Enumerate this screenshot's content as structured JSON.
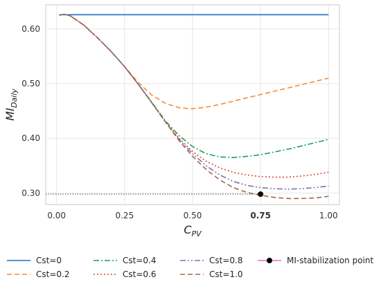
{
  "chart_data": {
    "type": "line",
    "xlabel": {
      "main": "C",
      "sub": "PV"
    },
    "ylabel": {
      "main": "MI",
      "sub": "Daily"
    },
    "xlim": [
      -0.04,
      1.04
    ],
    "ylim": [
      0.279,
      0.644
    ],
    "xticks": [
      {
        "value": 0.0,
        "label": "0.00",
        "bold": false
      },
      {
        "value": 0.25,
        "label": "0.25",
        "bold": false
      },
      {
        "value": 0.5,
        "label": "0.50",
        "bold": false
      },
      {
        "value": 0.75,
        "label": "0.75",
        "bold": true
      },
      {
        "value": 1.0,
        "label": "1.00",
        "bold": false
      }
    ],
    "yticks": [
      {
        "value": 0.3,
        "label": "0.30"
      },
      {
        "value": 0.4,
        "label": "0.40"
      },
      {
        "value": 0.5,
        "label": "0.50"
      },
      {
        "value": 0.6,
        "label": "0.60"
      }
    ],
    "grid": true,
    "legend_position": "bottom",
    "series": [
      {
        "name": "Cst=0",
        "color": "#1f6fc5",
        "dash": "solid",
        "x": [
          0.01,
          0.5,
          1.0
        ],
        "y": [
          0.626,
          0.626,
          0.626
        ]
      },
      {
        "name": "Cst=0.2",
        "color": "#f28a3b",
        "dash": "dashed",
        "x": [
          0.01,
          0.03,
          0.05,
          0.1,
          0.15,
          0.2,
          0.25,
          0.3,
          0.35,
          0.4,
          0.45,
          0.5,
          0.55,
          0.6,
          0.65,
          0.7,
          0.75,
          0.8,
          0.85,
          0.9,
          0.95,
          1.0
        ],
        "y": [
          0.625,
          0.627,
          0.624,
          0.607,
          0.584,
          0.559,
          0.531,
          0.502,
          0.479,
          0.464,
          0.456,
          0.454,
          0.457,
          0.462,
          0.468,
          0.474,
          0.48,
          0.486,
          0.492,
          0.498,
          0.504,
          0.51
        ]
      },
      {
        "name": "Cst=0.4",
        "color": "#14a05a",
        "dash": "dashdot",
        "x": [
          0.01,
          0.03,
          0.05,
          0.1,
          0.15,
          0.2,
          0.25,
          0.3,
          0.35,
          0.4,
          0.45,
          0.5,
          0.55,
          0.6,
          0.65,
          0.7,
          0.75,
          0.8,
          0.85,
          0.9,
          0.95,
          1.0
        ],
        "y": [
          0.625,
          0.627,
          0.624,
          0.607,
          0.584,
          0.559,
          0.531,
          0.499,
          0.466,
          0.432,
          0.405,
          0.385,
          0.372,
          0.366,
          0.365,
          0.367,
          0.37,
          0.375,
          0.38,
          0.386,
          0.392,
          0.398
        ]
      },
      {
        "name": "Cst=0.6",
        "color": "#e0403a",
        "dash": "dotted",
        "x": [
          0.01,
          0.03,
          0.05,
          0.1,
          0.15,
          0.2,
          0.25,
          0.3,
          0.35,
          0.4,
          0.45,
          0.5,
          0.55,
          0.6,
          0.65,
          0.7,
          0.75,
          0.8,
          0.85,
          0.9,
          0.95,
          1.0
        ],
        "y": [
          0.625,
          0.627,
          0.624,
          0.607,
          0.584,
          0.559,
          0.531,
          0.499,
          0.465,
          0.43,
          0.4,
          0.376,
          0.358,
          0.346,
          0.338,
          0.333,
          0.33,
          0.329,
          0.329,
          0.331,
          0.334,
          0.338
        ]
      },
      {
        "name": "Cst=0.8",
        "color": "#7b6fb0",
        "dash": "dashdotdot",
        "x": [
          0.01,
          0.03,
          0.05,
          0.1,
          0.15,
          0.2,
          0.25,
          0.3,
          0.35,
          0.4,
          0.45,
          0.5,
          0.55,
          0.6,
          0.65,
          0.7,
          0.75,
          0.8,
          0.85,
          0.9,
          0.95,
          1.0
        ],
        "y": [
          0.625,
          0.627,
          0.624,
          0.607,
          0.584,
          0.559,
          0.531,
          0.499,
          0.465,
          0.43,
          0.398,
          0.372,
          0.35,
          0.333,
          0.321,
          0.314,
          0.31,
          0.308,
          0.307,
          0.308,
          0.31,
          0.313
        ]
      },
      {
        "name": "Cst=1.0",
        "color": "#a0694a",
        "dash": "dashed",
        "x": [
          0.01,
          0.03,
          0.05,
          0.1,
          0.15,
          0.2,
          0.25,
          0.3,
          0.35,
          0.4,
          0.45,
          0.5,
          0.55,
          0.6,
          0.65,
          0.7,
          0.75,
          0.8,
          0.85,
          0.9,
          0.95,
          1.0
        ],
        "y": [
          0.625,
          0.627,
          0.624,
          0.607,
          0.584,
          0.559,
          0.531,
          0.499,
          0.465,
          0.43,
          0.396,
          0.367,
          0.343,
          0.324,
          0.31,
          0.301,
          0.296,
          0.292,
          0.29,
          0.29,
          0.291,
          0.294
        ]
      }
    ],
    "annotations": [
      {
        "name": "MI-stabilization point",
        "x": 0.75,
        "y": 0.298,
        "color": "#000000",
        "line_color": "#e76fc0",
        "guide_color": "#444444"
      }
    ]
  }
}
